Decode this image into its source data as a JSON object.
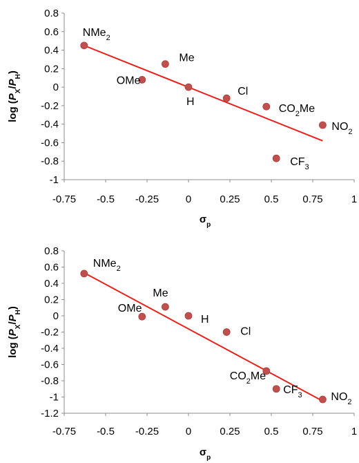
{
  "chart_data": [
    {
      "type": "scatter",
      "title": "",
      "xlabel": "σp",
      "ylabel": "log (PX/PH)",
      "xlim": [
        -0.75,
        1
      ],
      "ylim": [
        -1,
        0.8
      ],
      "xticks": [
        -0.75,
        -0.5,
        -0.25,
        0,
        0.25,
        0.5,
        0.75,
        1
      ],
      "yticks": [
        0.8,
        0.6,
        0.4,
        0.2,
        0,
        -0.2,
        -0.4,
        -0.6,
        -0.8,
        -1
      ],
      "xtick_labels": [
        "-0.75",
        "-0.5",
        "-0.25",
        "0",
        "0.25",
        "0.5",
        "0.75",
        "1"
      ],
      "ytick_labels": [
        "0.8",
        "0.6",
        "0.4",
        "0.2",
        "0",
        "-0.2",
        "-0.4",
        "-0.6",
        "-0.8",
        "-1"
      ],
      "marker_color": "#c0504d",
      "fit_color": "#e8211b",
      "grid": false,
      "points": [
        {
          "label": "NMe2",
          "x": -0.63,
          "y": 0.45
        },
        {
          "label": "Me",
          "x": -0.14,
          "y": 0.25
        },
        {
          "label": "OMe",
          "x": -0.28,
          "y": 0.08
        },
        {
          "label": "H",
          "x": 0.0,
          "y": 0.0
        },
        {
          "label": "Cl",
          "x": 0.23,
          "y": -0.12
        },
        {
          "label": "CO2Me",
          "x": 0.47,
          "y": -0.21
        },
        {
          "label": "NO2",
          "x": 0.81,
          "y": -0.41
        },
        {
          "label": "CF3",
          "x": 0.53,
          "y": -0.77
        }
      ],
      "fit_line": {
        "x": [
          -0.63,
          0.81
        ],
        "y": [
          0.45,
          -0.58
        ]
      }
    },
    {
      "type": "scatter",
      "title": "",
      "xlabel": "σp",
      "ylabel": "log (PX/PH)",
      "xlim": [
        -0.75,
        1
      ],
      "ylim": [
        -1.2,
        0.8
      ],
      "xticks": [
        -0.75,
        -0.5,
        -0.25,
        0,
        0.25,
        0.5,
        0.75,
        1
      ],
      "yticks": [
        0.8,
        0.6,
        0.4,
        0.2,
        0,
        -0.2,
        -0.4,
        -0.6,
        -0.8,
        -1,
        -1.2
      ],
      "xtick_labels": [
        "-0.75",
        "-0.5",
        "-0.25",
        "0",
        "0.25",
        "0.5",
        "0.75",
        "1"
      ],
      "ytick_labels": [
        "0.8",
        "0.6",
        "0.4",
        "0.2",
        "0",
        "-0.2",
        "-0.4",
        "-0.6",
        "-0.8",
        "-1",
        "-1.2"
      ],
      "marker_color": "#c0504d",
      "fit_color": "#e8211b",
      "grid": false,
      "points": [
        {
          "label": "NMe2",
          "x": -0.63,
          "y": 0.52
        },
        {
          "label": "Me",
          "x": -0.14,
          "y": 0.11
        },
        {
          "label": "OMe",
          "x": -0.28,
          "y": -0.01
        },
        {
          "label": "H",
          "x": 0.0,
          "y": 0.0
        },
        {
          "label": "Cl",
          "x": 0.23,
          "y": -0.2
        },
        {
          "label": "CO2Me",
          "x": 0.47,
          "y": -0.68
        },
        {
          "label": "NO2",
          "x": 0.81,
          "y": -1.03
        },
        {
          "label": "CF3",
          "x": 0.53,
          "y": -0.9
        }
      ],
      "fit_line": {
        "x": [
          -0.63,
          0.81
        ],
        "y": [
          0.53,
          -1.05
        ]
      }
    }
  ]
}
